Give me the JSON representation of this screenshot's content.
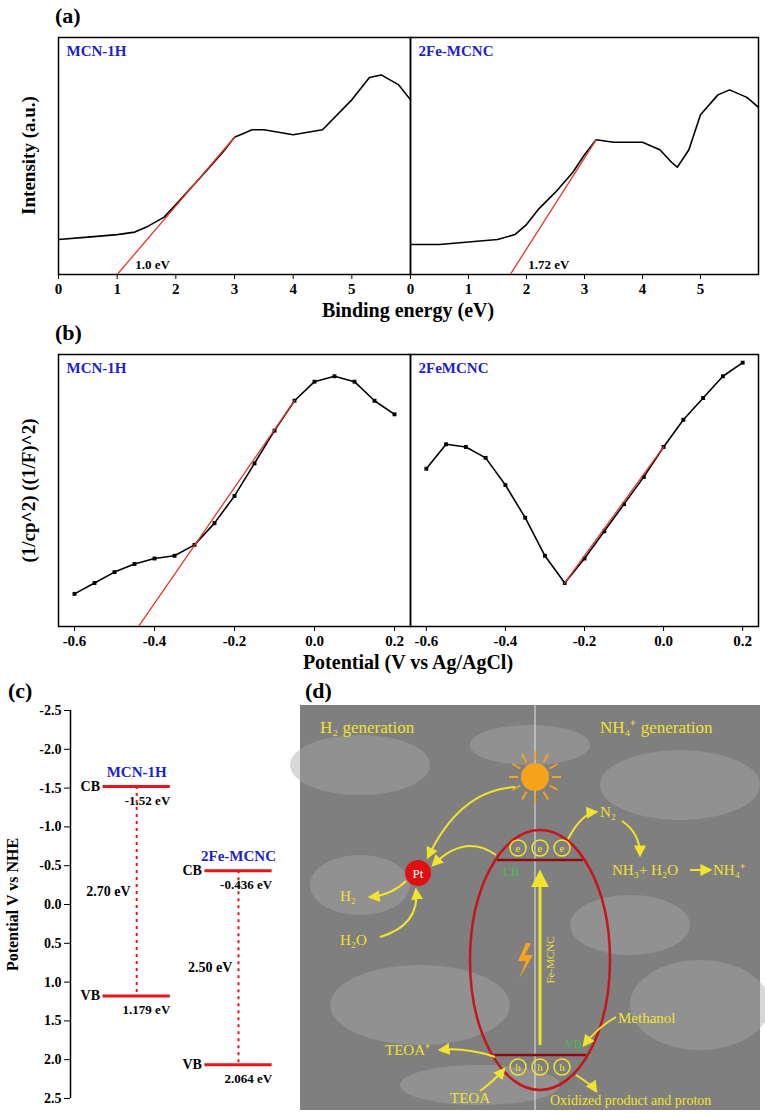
{
  "chart_data": [
    {
      "type": "line",
      "panel": "(a)",
      "xlabel": "Binding energy (eV)",
      "ylabel": "Intensity (a.u.)",
      "tick_labels": "x",
      "subplots": [
        {
          "title": "MCN-1H",
          "color": "#000000",
          "x": [
            0,
            0.5,
            1,
            1.3,
            1.5,
            1.8,
            2,
            2.5,
            2.8,
            3,
            3.3,
            3.5,
            4,
            4.5,
            5,
            5.3,
            5.5,
            5.8,
            6
          ],
          "values": [
            14,
            15,
            16,
            17,
            19,
            23,
            28,
            41,
            49,
            55,
            58,
            58,
            56,
            58,
            70,
            79,
            80,
            76,
            70
          ],
          "xlim": [
            0,
            6
          ],
          "xticks": [
            0,
            1,
            2,
            3,
            4,
            5
          ],
          "ylim": [
            0,
            95
          ],
          "fit": {
            "x": [
              1.0,
              3.0
            ],
            "values": [
              0,
              55
            ],
            "label": "1.0 eV",
            "color": "#e8352a"
          }
        },
        {
          "title": "2Fe-MCNC",
          "color": "#000000",
          "x": [
            0,
            0.5,
            1,
            1.5,
            1.8,
            2,
            2.2,
            2.5,
            2.8,
            3,
            3.2,
            3.5,
            4,
            4.3,
            4.5,
            4.6,
            4.8,
            5,
            5.3,
            5.5,
            5.8,
            6
          ],
          "values": [
            12,
            12,
            13,
            14,
            16,
            20,
            26,
            33,
            41,
            48,
            54,
            53,
            53,
            50,
            45,
            43,
            50,
            64,
            72,
            74,
            71,
            67
          ],
          "xlim": [
            0,
            6
          ],
          "xticks": [
            0,
            1,
            2,
            3,
            4,
            5
          ],
          "ylim": [
            0,
            95
          ],
          "fit": {
            "x": [
              1.72,
              3.2
            ],
            "values": [
              0,
              54
            ],
            "label": "1.72 eV",
            "color": "#e8352a"
          }
        }
      ]
    },
    {
      "type": "line",
      "panel": "(b)",
      "xlabel": "Potential (V vs Ag/AgCl)",
      "ylabel": "(1/cp^2) ((1/F)^2)",
      "tick_labels": "x",
      "marker": "square",
      "subplots": [
        {
          "title": "MCN-1H",
          "color": "#000000",
          "x": [
            -0.6,
            -0.55,
            -0.5,
            -0.45,
            -0.4,
            -0.35,
            -0.3,
            -0.25,
            -0.2,
            -0.15,
            -0.1,
            -0.05,
            0,
            0.05,
            0.1,
            0.15,
            0.2
          ],
          "values": [
            12,
            16,
            20,
            23,
            25,
            26,
            30,
            38,
            48,
            60,
            72,
            83,
            90,
            92,
            90,
            83,
            78
          ],
          "xlim": [
            -0.64,
            0.24
          ],
          "xticks": [
            -0.6,
            -0.4,
            -0.2,
            {
              "value": 0,
              "label": "0.0"
            },
            0.2
          ],
          "ylim": [
            0,
            100
          ],
          "fit": {
            "x": [
              -0.44,
              -0.05
            ],
            "values": [
              0,
              83
            ],
            "color": "#e8352a"
          }
        },
        {
          "title": "2FeMCNC",
          "color": "#000000",
          "x": [
            -0.6,
            -0.55,
            -0.5,
            -0.45,
            -0.4,
            -0.35,
            -0.3,
            -0.25,
            -0.2,
            -0.15,
            -0.1,
            -0.05,
            0,
            0.05,
            0.1,
            0.15,
            0.2
          ],
          "values": [
            58,
            67,
            66,
            62,
            52,
            40,
            26,
            16,
            25,
            35,
            45,
            55,
            66,
            76,
            84,
            92,
            97
          ],
          "xlim": [
            -0.64,
            0.24
          ],
          "xticks": [
            -0.6,
            -0.4,
            -0.2,
            {
              "value": 0,
              "label": "0.0"
            },
            0.2
          ],
          "ylim": [
            0,
            100
          ],
          "fit": {
            "x": [
              -0.25,
              0.0
            ],
            "values": [
              16,
              66
            ],
            "color": "#e8352a"
          }
        }
      ]
    },
    {
      "type": "band",
      "panel": "(c)",
      "ylabel": "Potential V vs NHE",
      "tick_labels": "y",
      "data_labels": true,
      "color": "#e8141a",
      "categories": [
        "MCN-1H",
        "2Fe-MCNC"
      ],
      "series": [
        {
          "name": "CB",
          "values": [
            -1.52,
            -0.436
          ],
          "value_labels": [
            "-1.52 eV",
            "-0.436 eV"
          ]
        },
        {
          "name": "VB",
          "values": [
            1.179,
            2.064
          ],
          "value_labels": [
            "1.179 eV",
            "2.064 eV"
          ]
        }
      ],
      "band_gap": {
        "values": [
          2.7,
          2.5
        ],
        "value_labels": [
          "2.70 eV",
          "2.50 eV"
        ]
      },
      "ylim": [
        2.5,
        -2.5
      ],
      "yticks": [
        -2.5,
        {
          "value": -2,
          "label": "-2.0"
        },
        -1.5,
        {
          "value": -1,
          "label": "-1.0"
        },
        -0.5,
        {
          "value": 0,
          "label": "0.0"
        },
        0.5,
        {
          "value": 1,
          "label": "1.0"
        },
        1.5,
        {
          "value": 2,
          "label": "2.0"
        },
        2.5
      ]
    }
  ],
  "diagram": {
    "panel": "(d)",
    "sections": [
      "H₂ generation",
      "NH₄⁺ generation"
    ],
    "catalyst": "Fe-MCNC",
    "cb": "CB",
    "vb": "VB",
    "electron": "e",
    "hole": "h",
    "cocatalyst": "Pt",
    "h2_side": {
      "reactant": "H₂O",
      "product": "H₂",
      "donor": "TEOA",
      "donor_oxidized": "TEOA⁺"
    },
    "nh4_side": {
      "reactant": "N₂",
      "reaction": "NH₃+ H₂O",
      "product": "NH₄⁺",
      "donor": "Methanol",
      "donor_oxidized": "Oxidized product and proton"
    }
  }
}
